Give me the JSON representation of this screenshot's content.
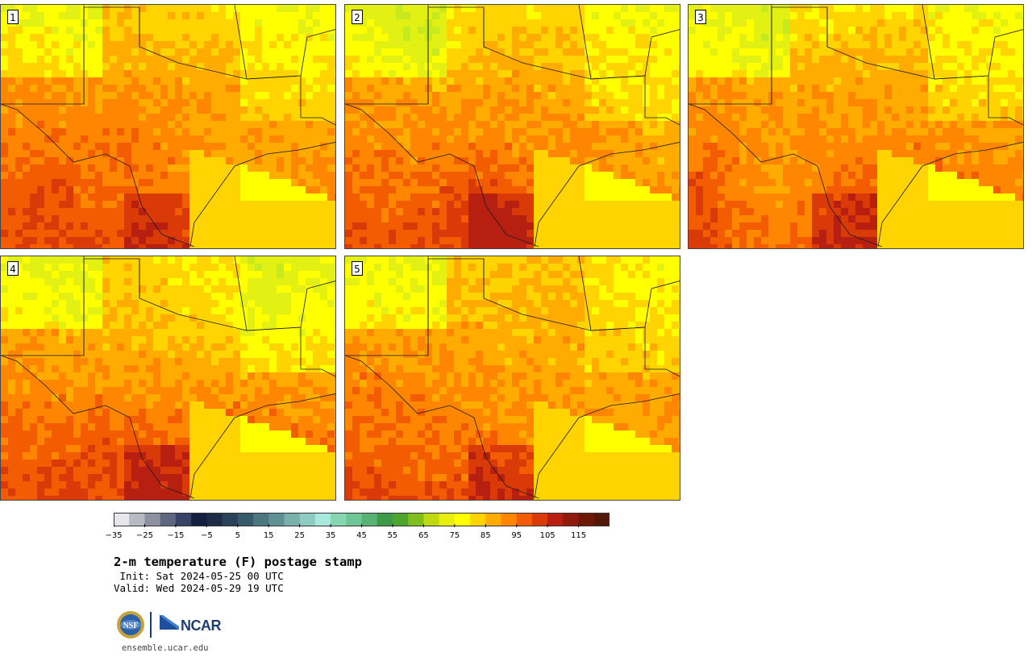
{
  "panels": [
    {
      "label": "1"
    },
    {
      "label": "2"
    },
    {
      "label": "3"
    },
    {
      "label": "4"
    },
    {
      "label": "5"
    }
  ],
  "colorbar": {
    "colors": [
      "#e6e7eb",
      "#b8bac3",
      "#8c90a0",
      "#5f6680",
      "#364266",
      "#15203f",
      "#1c2b48",
      "#294159",
      "#365a6a",
      "#4b7680",
      "#5f9093",
      "#7aafac",
      "#8fcbc3",
      "#a7eadc",
      "#86d7b1",
      "#6fc695",
      "#58b274",
      "#3f9a47",
      "#4ea52e",
      "#7fbe1d",
      "#bfd911",
      "#e8ee0e",
      "#ffff00",
      "#ffd400",
      "#ffab00",
      "#ff8600",
      "#f35c00",
      "#d93a08",
      "#b72010",
      "#911a0e",
      "#6e1809",
      "#53180a"
    ],
    "tick_labels": [
      "−35",
      "−25",
      "−15",
      "−5",
      "5",
      "15",
      "25",
      "35",
      "45",
      "55",
      "65",
      "75",
      "85",
      "95",
      "105",
      "115"
    ]
  },
  "title": "2-m temperature (F) postage stamp",
  "init": " Init: Sat 2024-05-25 00 UTC",
  "valid": "Valid: Wed 2024-05-29 19 UTC",
  "logos": {
    "nsf": "NSF",
    "ncar": "NCAR"
  },
  "website": "ensemble.ucar.edu"
}
